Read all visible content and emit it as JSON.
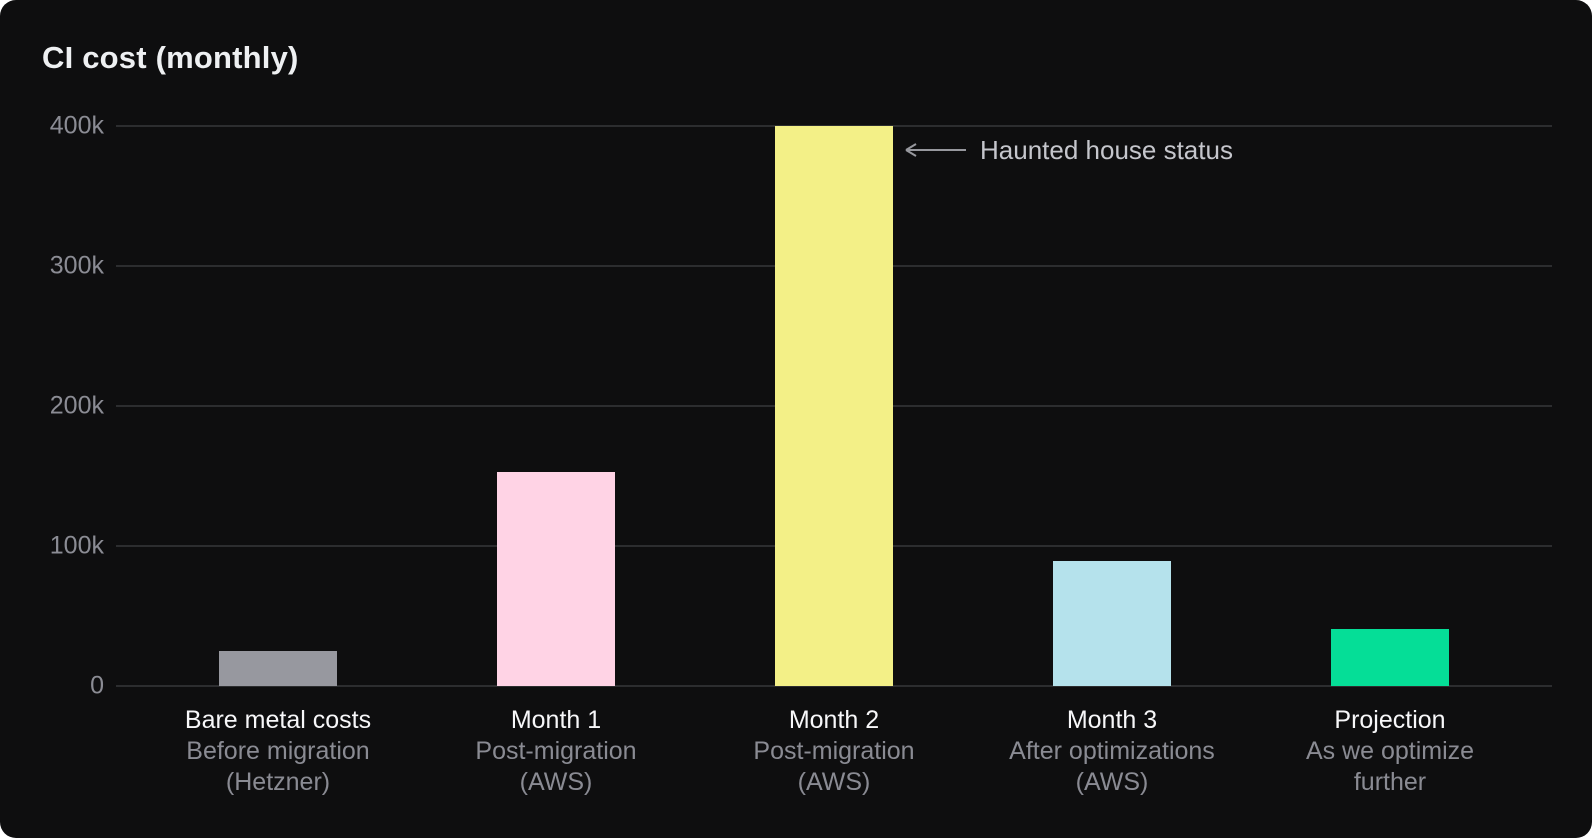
{
  "chart_data": {
    "type": "bar",
    "title": "CI cost (monthly)",
    "categories": [
      {
        "label": "Bare metal costs",
        "sublabel_lines": [
          "Before migration",
          "(Hetzner)"
        ]
      },
      {
        "label": "Month 1",
        "sublabel_lines": [
          "Post-migration",
          "(AWS)"
        ]
      },
      {
        "label": "Month 2",
        "sublabel_lines": [
          "Post-migration",
          "(AWS)"
        ]
      },
      {
        "label": "Month 3",
        "sublabel_lines": [
          "After optimizations",
          "(AWS)"
        ]
      },
      {
        "label": "Projection",
        "sublabel_lines": [
          "As we optimize",
          "further"
        ]
      }
    ],
    "values": [
      25000,
      153000,
      400000,
      89000,
      41000
    ],
    "bar_colors": [
      "#97989f",
      "#ffd3e5",
      "#f3f087",
      "#b5e2ec",
      "#05de97"
    ],
    "ylim": [
      0,
      400000
    ],
    "yticks": [
      0,
      100000,
      200000,
      300000,
      400000
    ],
    "ytick_labels": [
      "0",
      "100k",
      "200k",
      "300k",
      "400k"
    ],
    "grid": "horizontal",
    "legend": "none",
    "annotation": {
      "text": "Haunted house status",
      "arrow_direction": "left",
      "points_to": "Month 2"
    },
    "colors": {
      "background": "#0e0e0f",
      "gridline": "#2c2d2f",
      "title_text": "#eef0f2",
      "tick_text": "#8b8c94",
      "category_text": "#f7f7f9",
      "sublabel_text": "#8a8b93",
      "annotation_text": "#c5c6cc",
      "arrow": "#97989e"
    }
  }
}
